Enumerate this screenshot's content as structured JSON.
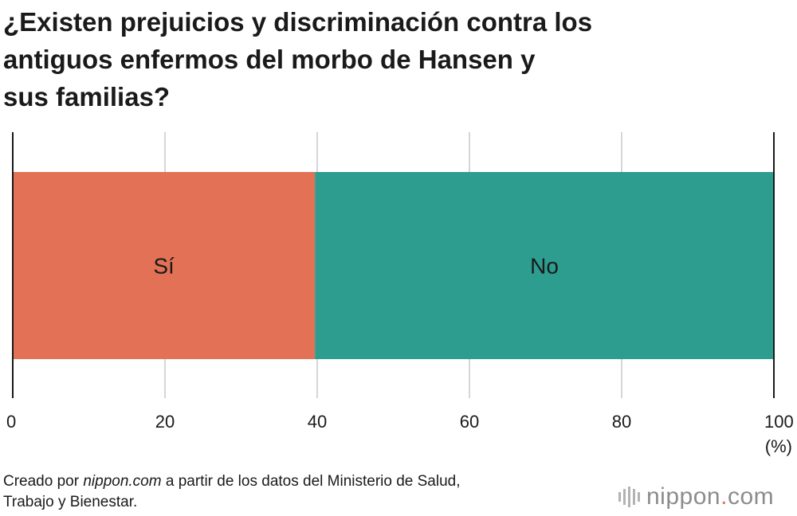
{
  "title_lines": [
    "¿Existen prejuicios y discriminación contra los",
    "antiguos enfermos del morbo de Hansen y",
    "sus familias?"
  ],
  "source": {
    "prefix": "Creado por ",
    "site": "nippon.com",
    "suffix": " a partir de los datos del Ministerio de Salud,",
    "line2": "Trabajo y Bienestar."
  },
  "logo": {
    "name": "nippon",
    "dot": ".",
    "tld": "com"
  },
  "colors": {
    "si": "#e37155",
    "no": "#2c9d8f",
    "grid": "#c8c8c8",
    "axis": "#1a1a1a"
  },
  "chart_data": {
    "type": "bar",
    "orientation": "horizontal-stacked-100",
    "categories": [
      "Sí",
      "No"
    ],
    "values": [
      39.7,
      60.3
    ],
    "xlim": [
      0,
      100
    ],
    "xticks": [
      0,
      20,
      40,
      60,
      80,
      100
    ],
    "unit": "(%)",
    "grid": true
  }
}
